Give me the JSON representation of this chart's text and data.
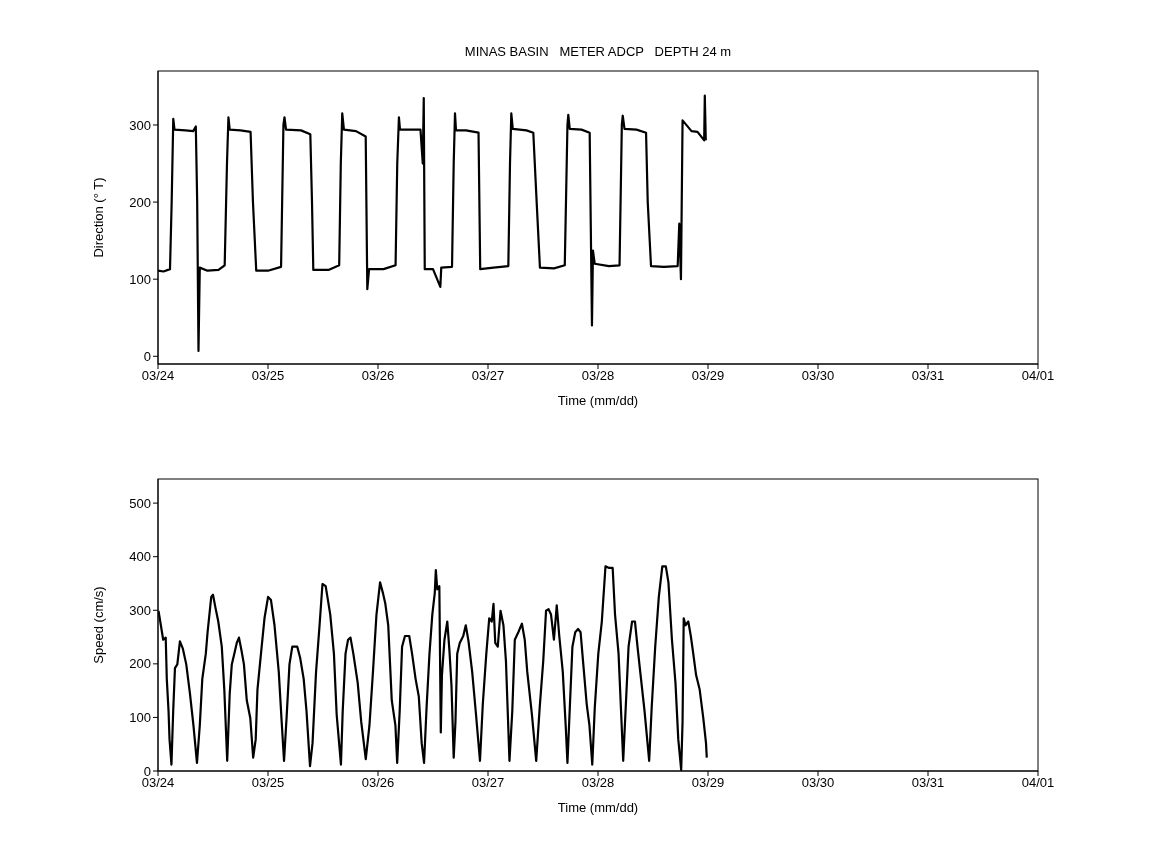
{
  "chart_data": [
    {
      "type": "line",
      "title": "MINAS BASIN   METER ADCP   DEPTH 24 m",
      "xlabel": "Time (mm/dd)",
      "ylabel": "Direction (° T)",
      "xlim": [
        "--03-24",
        "--04-01"
      ],
      "xticks": [
        {
          "value": "--03-24",
          "label": "03/24"
        },
        {
          "value": "--03-25",
          "label": "03/25"
        },
        {
          "value": "--03-26",
          "label": "03/26"
        },
        {
          "value": "--03-27",
          "label": "03/27"
        },
        {
          "value": "--03-28",
          "label": "03/28"
        },
        {
          "value": "--03-29",
          "label": "03/29"
        },
        {
          "value": "--03-30",
          "label": "03/30"
        },
        {
          "value": "--03-31",
          "label": "03/31"
        },
        {
          "value": "--04-01",
          "label": "04/01"
        }
      ],
      "ylim": [
        -10,
        370
      ],
      "yticks": [
        0,
        100,
        200,
        300
      ],
      "color": "#000000",
      "x": [
        "--03-24T00:00",
        "--03-24T01:12",
        "--03-24T02:37",
        "--03-24T02:59",
        "--03-24T03:20",
        "--03-24T03:36",
        "--03-24T06:00",
        "--03-24T07:41",
        "--03-24T08:15",
        "--03-24T08:33",
        "--03-24T08:50",
        "--03-24T09:07",
        "--03-24T10:48",
        "--03-24T13:12",
        "--03-24T14:33",
        "--03-24T15:03",
        "--03-24T15:22",
        "--03-24T15:39",
        "--03-24T18:00",
        "--03-24T20:12",
        "--03-24T20:43",
        "--03-24T21:26",
        "--03-25T00:00",
        "--03-25T02:51",
        "--03-25T03:22",
        "--03-25T03:36",
        "--03-25T03:56",
        "--03-25T07:12",
        "--03-25T09:14",
        "--03-25T09:36",
        "--03-25T09:53",
        "--03-25T13:12",
        "--03-25T15:32",
        "--03-25T15:53",
        "--03-25T16:12",
        "--03-25T16:34",
        "--03-25T19:12",
        "--03-25T21:19",
        "--03-25T21:40",
        "--03-25T22:03",
        "--03-26T01:12",
        "--03-26T03:50",
        "--03-26T04:12",
        "--03-26T04:34",
        "--03-26T04:48",
        "--03-26T07:12",
        "--03-26T09:16",
        "--03-26T09:46",
        "--03-26T09:59",
        "--03-26T10:12",
        "--03-26T12:00",
        "--03-26T13:36",
        "--03-26T13:48",
        "--03-26T16:09",
        "--03-26T16:31",
        "--03-26T16:48",
        "--03-26T17:01",
        "--03-26T19:12",
        "--03-26T21:56",
        "--03-26T22:18",
        "--03-27T01:12",
        "--03-27T04:26",
        "--03-27T04:48",
        "--03-27T05:05",
        "--03-27T05:24",
        "--03-27T08:24",
        "--03-27T09:53",
        "--03-27T10:37",
        "--03-27T11:20",
        "--03-27T14:24",
        "--03-27T16:45",
        "--03-27T17:20",
        "--03-27T17:31",
        "--03-27T17:50",
        "--03-27T20:24",
        "--03-27T22:11",
        "--03-27T22:41",
        "--03-27T22:54",
        "--03-27T23:17",
        "--03-28T02:24",
        "--03-28T04:42",
        "--03-28T05:12",
        "--03-28T05:24",
        "--03-28T05:47",
        "--03-28T08:24",
        "--03-28T10:29",
        "--03-28T10:51",
        "--03-28T11:34",
        "--03-28T14:24",
        "--03-28T17:23",
        "--03-28T17:44",
        "--03-28T18:06",
        "--03-28T18:27",
        "--03-28T20:24",
        "--03-28T21:43",
        "--03-28T23:10",
        "--03-28T23:18",
        "--03-28T23:31"
      ],
      "values": [
        111,
        110,
        113,
        200,
        308,
        294,
        293,
        292,
        298,
        200,
        7,
        115,
        111,
        112,
        118,
        250,
        310,
        294,
        293,
        291,
        200,
        111,
        111,
        116,
        300,
        310,
        294,
        293,
        288,
        200,
        112,
        112,
        118,
        250,
        315,
        294,
        292,
        285,
        87,
        113,
        113,
        118,
        250,
        310,
        294,
        294,
        294,
        250,
        335,
        113,
        113,
        90,
        115,
        116,
        250,
        315,
        293,
        293,
        290,
        113,
        115,
        117,
        250,
        315,
        295,
        293,
        290,
        200,
        115,
        114,
        118,
        300,
        313,
        295,
        294,
        290,
        40,
        137,
        120,
        117,
        118,
        300,
        312,
        295,
        294,
        290,
        200,
        117,
        116,
        117,
        172,
        100,
        306,
        292,
        291,
        280,
        338,
        280
      ]
    },
    {
      "type": "line",
      "xlabel": "Time (mm/dd)",
      "ylabel": "Speed (cm/s)",
      "xlim": [
        "--03-24",
        "--04-01"
      ],
      "xticks": [
        {
          "value": "--03-24",
          "label": "03/24"
        },
        {
          "value": "--03-25",
          "label": "03/25"
        },
        {
          "value": "--03-26",
          "label": "03/26"
        },
        {
          "value": "--03-27",
          "label": "03/27"
        },
        {
          "value": "--03-28",
          "label": "03/28"
        },
        {
          "value": "--03-29",
          "label": "03/29"
        },
        {
          "value": "--03-30",
          "label": "03/30"
        },
        {
          "value": "--03-31",
          "label": "03/31"
        },
        {
          "value": "--04-01",
          "label": "04/01"
        }
      ],
      "ylim": [
        0,
        545
      ],
      "yticks": [
        0,
        100,
        200,
        300,
        400,
        500
      ],
      "color": "#000000",
      "x": [
        "--03-24T00:07",
        "--03-24T01:08",
        "--03-24T01:41",
        "--03-24T01:55",
        "--03-24T02:18",
        "--03-24T02:31",
        "--03-24T02:56",
        "--03-24T03:19",
        "--03-24T03:42",
        "--03-24T04:13",
        "--03-24T04:47",
        "--03-24T05:24",
        "--03-24T06:10",
        "--03-24T06:58",
        "--03-24T07:44",
        "--03-24T08:30",
        "--03-24T09:07",
        "--03-24T09:40",
        "--03-24T10:26",
        "--03-24T10:49",
        "--03-24T11:37",
        "--03-24T12:00",
        "--03-24T12:32",
        "--03-24T13:09",
        "--03-24T13:55",
        "--03-24T14:28",
        "--03-24T15:06",
        "--03-24T15:39",
        "--03-24T16:06",
        "--03-24T16:39",
        "--03-24T17:11",
        "--03-24T17:40",
        "--03-24T18:13",
        "--03-24T18:45",
        "--03-24T19:22",
        "--03-24T20:08",
        "--03-24T20:46",
        "--03-24T21:19",
        "--03-24T21:42",
        "--03-24T22:28",
        "--03-24T23:14",
        "--03-25T00:01",
        "--03-25T00:39",
        "--03-25T01:25",
        "--03-25T02:21",
        "--03-25T02:59",
        "--03-25T03:30",
        "--03-25T04:03",
        "--03-25T04:41",
        "--03-25T05:18",
        "--03-25T05:50",
        "--03-25T06:23",
        "--03-25T07:00",
        "--03-25T07:47",
        "--03-25T08:24",
        "--03-25T09:10",
        "--03-25T09:43",
        "--03-25T10:29",
        "--03-25T11:15",
        "--03-25T11:53",
        "--03-25T12:35",
        "--03-25T13:35",
        "--03-25T14:23",
        "--03-25T14:59",
        "--03-25T15:55",
        "--03-25T16:18",
        "--03-25T16:55",
        "--03-25T17:28",
        "--03-25T18:00",
        "--03-25T18:37",
        "--03-25T19:34",
        "--03-25T20:20",
        "--03-25T21:20",
        "--03-25T22:08",
        "--03-25T22:54",
        "--03-25T23:40",
        "--03-26T00:27",
        "--03-26T01:05",
        "--03-26T01:36",
        "--03-26T02:14",
        "--03-26T03:00",
        "--03-26T03:48",
        "--03-26T04:11",
        "--03-26T04:44",
        "--03-26T05:15",
        "--03-26T05:53",
        "--03-26T06:49",
        "--03-26T07:26",
        "--03-26T08:12",
        "--03-26T08:54",
        "--03-26T09:32",
        "--03-26T10:03",
        "--03-26T10:36",
        "--03-26T11:14",
        "--03-26T11:51",
        "--03-26T12:23",
        "--03-26T12:37",
        "--03-26T12:56",
        "--03-26T13:23",
        "--03-26T13:42",
        "--03-26T13:57",
        "--03-26T14:30",
        "--03-26T15:07",
        "--03-26T15:35",
        "--03-26T16:02",
        "--03-26T16:31",
        "--03-26T16:54",
        "--03-26T17:17",
        "--03-26T17:50",
        "--03-26T18:36",
        "--03-26T19:09",
        "--03-26T19:45",
        "--03-26T20:33",
        "--03-26T21:19",
        "--03-26T22:15",
        "--03-26T22:52",
        "--03-26T23:38",
        "--03-27T00:16",
        "--03-27T00:49",
        "--03-27T01:12",
        "--03-27T01:35",
        "--03-27T02:08",
        "--03-27T02:44",
        "--03-27T03:22",
        "--03-27T03:55",
        "--03-27T04:41",
        "--03-27T05:18",
        "--03-27T05:51",
        "--03-27T06:37",
        "--03-27T07:24",
        "--03-27T08:01",
        "--03-27T08:34",
        "--03-27T09:35",
        "--03-27T10:31",
        "--03-27T11:17",
        "--03-27T12:03",
        "--03-27T12:40",
        "--03-27T13:13",
        "--03-27T13:45",
        "--03-27T14:23",
        "--03-27T15:00",
        "--03-27T15:33",
        "--03-27T16:19",
        "--03-27T16:57",
        "--03-27T17:20",
        "--03-27T17:53",
        "--03-27T18:25",
        "--03-27T19:02",
        "--03-27T19:39",
        "--03-27T20:12",
        "--03-27T20:44",
        "--03-27T21:32",
        "--03-27T22:08",
        "--03-27T22:45",
        "--03-27T23:18",
        "--03-28T00:04",
        "--03-28T00:50",
        "--03-28T01:38",
        "--03-28T02:24",
        "--03-28T03:12",
        "--03-28T03:43",
        "--03-28T04:29",
        "--03-28T05:30",
        "--03-28T06:03",
        "--03-28T06:40",
        "--03-28T07:26",
        "--03-28T08:04",
        "--03-28T08:37",
        "--03-28T09:23",
        "--03-28T10:09",
        "--03-28T11:10",
        "--03-28T11:43",
        "--03-28T12:29",
        "--03-28T13:16",
        "--03-28T14:02",
        "--03-28T14:48",
        "--03-28T15:22",
        "--03-28T16:08",
        "--03-28T16:54",
        "--03-28T17:31",
        "--03-28T18:09",
        "--03-28T18:27",
        "--03-28T18:42",
        "--03-28T19:05",
        "--03-28T19:42",
        "--03-28T20:15",
        "--03-28T20:47",
        "--03-28T21:24",
        "--03-28T22:11",
        "--03-28T22:58",
        "--03-28T23:34",
        "--03-28T23:44"
      ],
      "values": [
        299,
        245,
        249,
        172,
        112,
        59,
        12,
        112,
        192,
        199,
        242,
        229,
        199,
        145,
        85,
        15,
        85,
        172,
        219,
        259,
        325,
        329,
        305,
        279,
        232,
        152,
        19,
        145,
        199,
        219,
        239,
        249,
        225,
        199,
        132,
        99,
        25,
        59,
        152,
        219,
        285,
        325,
        319,
        272,
        185,
        92,
        19,
        99,
        199,
        232,
        232,
        232,
        212,
        172,
        112,
        9,
        52,
        185,
        272,
        349,
        345,
        292,
        219,
        105,
        12,
        112,
        219,
        245,
        249,
        219,
        165,
        92,
        22,
        85,
        185,
        292,
        352,
        332,
        312,
        272,
        132,
        85,
        15,
        112,
        232,
        252,
        252,
        219,
        172,
        139,
        52,
        15,
        119,
        219,
        292,
        332,
        375,
        339,
        345,
        72,
        179,
        245,
        279,
        225,
        159,
        25,
        92,
        219,
        239,
        252,
        272,
        242,
        185,
        112,
        19,
        125,
        219,
        285,
        279,
        312,
        239,
        232,
        299,
        272,
        205,
        19,
        112,
        245,
        259,
        275,
        245,
        185,
        105,
        19,
        119,
        205,
        299,
        302,
        292,
        245,
        309,
        252,
        185,
        85,
        15,
        125,
        232,
        259,
        265,
        259,
        205,
        125,
        85,
        12,
        119,
        219,
        279,
        382,
        379,
        379,
        292,
        219,
        19,
        119,
        232,
        279,
        279,
        232,
        172,
        112,
        19,
        119,
        232,
        325,
        382,
        382,
        352,
        245,
        165,
        59,
        2,
        92,
        285,
        272,
        279,
        252,
        219,
        179,
        152,
        99,
        52,
        25
      ]
    }
  ]
}
